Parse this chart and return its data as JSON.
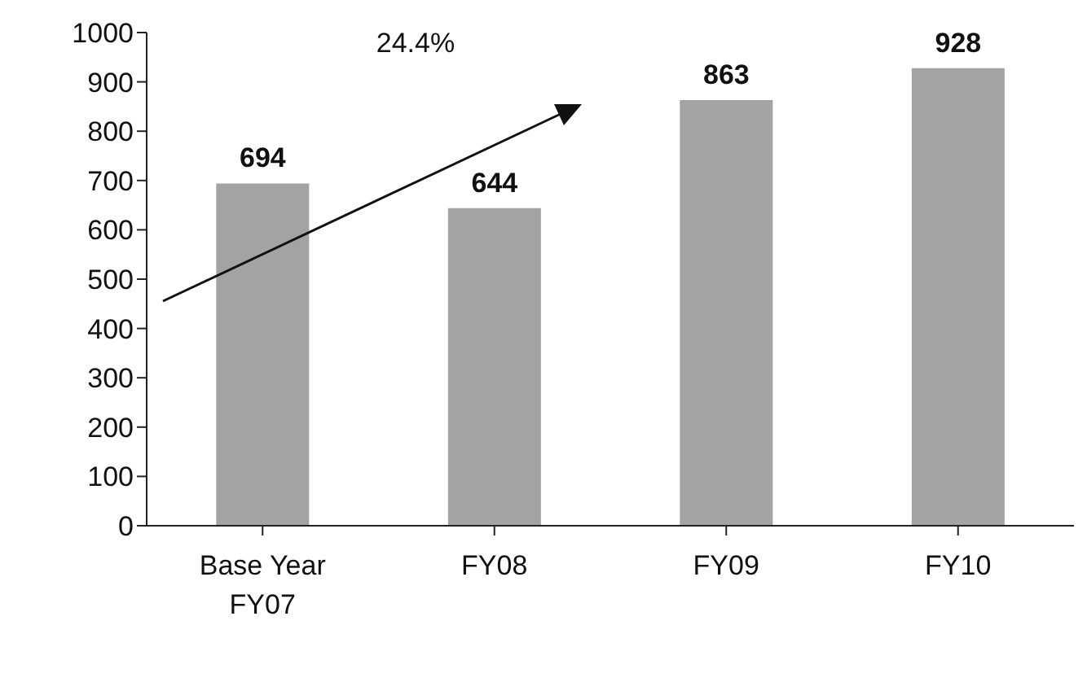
{
  "chart_data": {
    "type": "bar",
    "categories": [
      "Base Year\nFY07",
      "FY08",
      "FY09",
      "FY10"
    ],
    "values": [
      694,
      644,
      863,
      928
    ],
    "color": "#a3a3a3",
    "ylim": [
      0,
      1000
    ],
    "yticks": [
      0,
      100,
      200,
      300,
      400,
      500,
      600,
      700,
      800,
      900,
      1000
    ],
    "grid": false,
    "data_labels": true,
    "annotations": [
      "24.4%"
    ]
  }
}
